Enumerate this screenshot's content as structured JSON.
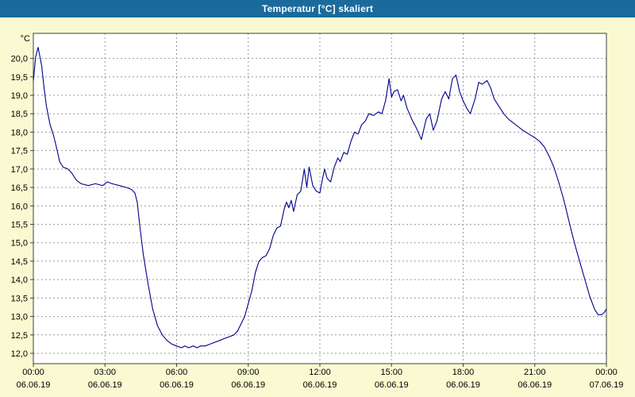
{
  "window": {
    "title": "Temperatur [°C] skaliert"
  },
  "colors": {
    "title_bar": "#1b6a9c",
    "background": "#fafad2",
    "plot_background": "#ffffff",
    "grid": "#9a9a9a",
    "border": "#404040",
    "line": "#00008b"
  },
  "chart_data": {
    "type": "line",
    "title": "Temperatur [°C] skaliert",
    "ylabel": "°C",
    "unit_label": "°C",
    "xlim": [
      0,
      24
    ],
    "ylim": [
      11.72,
      20.68
    ],
    "grid": true,
    "legend": "none",
    "line_color": "#00008b",
    "y_ticks": [
      {
        "value": 20.0,
        "label": "20,0"
      },
      {
        "value": 19.5,
        "label": "19,5"
      },
      {
        "value": 19.0,
        "label": "19,0"
      },
      {
        "value": 18.5,
        "label": "18,5"
      },
      {
        "value": 18.0,
        "label": "18,0"
      },
      {
        "value": 17.5,
        "label": "17,5"
      },
      {
        "value": 17.0,
        "label": "17,0"
      },
      {
        "value": 16.5,
        "label": "16,5"
      },
      {
        "value": 16.0,
        "label": "16,0"
      },
      {
        "value": 15.5,
        "label": "15,5"
      },
      {
        "value": 15.0,
        "label": "15,0"
      },
      {
        "value": 14.5,
        "label": "14,5"
      },
      {
        "value": 14.0,
        "label": "14,0"
      },
      {
        "value": 13.5,
        "label": "13,5"
      },
      {
        "value": 13.0,
        "label": "13,0"
      },
      {
        "value": 12.5,
        "label": "12,5"
      },
      {
        "value": 12.0,
        "label": "12,0"
      }
    ],
    "x_ticks": [
      {
        "hour": 0,
        "time": "00:00",
        "date": "06.06.19"
      },
      {
        "hour": 3,
        "time": "03:00",
        "date": "06.06.19"
      },
      {
        "hour": 6,
        "time": "06:00",
        "date": "06.06.19"
      },
      {
        "hour": 9,
        "time": "09:00",
        "date": "06.06.19"
      },
      {
        "hour": 12,
        "time": "12:00",
        "date": "06.06.19"
      },
      {
        "hour": 15,
        "time": "15:00",
        "date": "06.06.19"
      },
      {
        "hour": 18,
        "time": "18:00",
        "date": "06.06.19"
      },
      {
        "hour": 21,
        "time": "21:00",
        "date": "06.06.19"
      },
      {
        "hour": 24,
        "time": "00:00",
        "date": "07.06.19"
      }
    ],
    "series": [
      {
        "name": "Temperatur",
        "points": [
          [
            0,
            19.4
          ],
          [
            0.1,
            20.05
          ],
          [
            0.2,
            20.3
          ],
          [
            0.35,
            19.8
          ],
          [
            0.45,
            19.2
          ],
          [
            0.55,
            18.7
          ],
          [
            0.7,
            18.2
          ],
          [
            0.85,
            17.9
          ],
          [
            1.0,
            17.5
          ],
          [
            1.1,
            17.2
          ],
          [
            1.25,
            17.05
          ],
          [
            1.45,
            17.0
          ],
          [
            1.6,
            16.9
          ],
          [
            1.8,
            16.7
          ],
          [
            2.0,
            16.6
          ],
          [
            2.3,
            16.55
          ],
          [
            2.6,
            16.6
          ],
          [
            2.9,
            16.55
          ],
          [
            3.1,
            16.65
          ],
          [
            3.3,
            16.6
          ],
          [
            3.6,
            16.55
          ],
          [
            3.9,
            16.5
          ],
          [
            4.1,
            16.45
          ],
          [
            4.25,
            16.35
          ],
          [
            4.35,
            16.1
          ],
          [
            4.45,
            15.5
          ],
          [
            4.6,
            14.7
          ],
          [
            4.8,
            13.9
          ],
          [
            5.0,
            13.2
          ],
          [
            5.2,
            12.75
          ],
          [
            5.4,
            12.5
          ],
          [
            5.6,
            12.35
          ],
          [
            5.8,
            12.25
          ],
          [
            6.0,
            12.2
          ],
          [
            6.2,
            12.15
          ],
          [
            6.35,
            12.2
          ],
          [
            6.5,
            12.15
          ],
          [
            6.7,
            12.2
          ],
          [
            6.85,
            12.15
          ],
          [
            7.0,
            12.2
          ],
          [
            7.2,
            12.2
          ],
          [
            7.4,
            12.25
          ],
          [
            7.6,
            12.3
          ],
          [
            7.8,
            12.35
          ],
          [
            8.0,
            12.4
          ],
          [
            8.2,
            12.45
          ],
          [
            8.4,
            12.5
          ],
          [
            8.55,
            12.6
          ],
          [
            8.7,
            12.8
          ],
          [
            8.85,
            13.0
          ],
          [
            9.0,
            13.35
          ],
          [
            9.15,
            13.7
          ],
          [
            9.3,
            14.2
          ],
          [
            9.45,
            14.5
          ],
          [
            9.6,
            14.6
          ],
          [
            9.75,
            14.65
          ],
          [
            9.9,
            14.85
          ],
          [
            10.05,
            15.2
          ],
          [
            10.2,
            15.4
          ],
          [
            10.35,
            15.45
          ],
          [
            10.5,
            15.9
          ],
          [
            10.6,
            16.1
          ],
          [
            10.7,
            15.95
          ],
          [
            10.8,
            16.15
          ],
          [
            10.9,
            15.85
          ],
          [
            11.05,
            16.3
          ],
          [
            11.2,
            16.4
          ],
          [
            11.35,
            17.0
          ],
          [
            11.45,
            16.5
          ],
          [
            11.55,
            17.05
          ],
          [
            11.7,
            16.55
          ],
          [
            11.85,
            16.4
          ],
          [
            12.0,
            16.35
          ],
          [
            12.1,
            16.7
          ],
          [
            12.2,
            17.0
          ],
          [
            12.3,
            16.75
          ],
          [
            12.45,
            16.65
          ],
          [
            12.6,
            17.05
          ],
          [
            12.75,
            17.3
          ],
          [
            12.85,
            17.2
          ],
          [
            13.0,
            17.45
          ],
          [
            13.15,
            17.4
          ],
          [
            13.3,
            17.75
          ],
          [
            13.45,
            18.0
          ],
          [
            13.6,
            17.95
          ],
          [
            13.75,
            18.2
          ],
          [
            13.9,
            18.3
          ],
          [
            14.05,
            18.5
          ],
          [
            14.25,
            18.45
          ],
          [
            14.45,
            18.55
          ],
          [
            14.6,
            18.5
          ],
          [
            14.75,
            18.85
          ],
          [
            14.9,
            19.45
          ],
          [
            15.0,
            18.95
          ],
          [
            15.1,
            19.1
          ],
          [
            15.25,
            19.15
          ],
          [
            15.4,
            18.85
          ],
          [
            15.5,
            19.0
          ],
          [
            15.65,
            18.65
          ],
          [
            15.85,
            18.35
          ],
          [
            16.05,
            18.1
          ],
          [
            16.25,
            17.8
          ],
          [
            16.45,
            18.35
          ],
          [
            16.6,
            18.5
          ],
          [
            16.75,
            18.05
          ],
          [
            16.9,
            18.3
          ],
          [
            17.1,
            18.9
          ],
          [
            17.25,
            19.1
          ],
          [
            17.4,
            18.9
          ],
          [
            17.55,
            19.45
          ],
          [
            17.7,
            19.55
          ],
          [
            17.85,
            19.1
          ],
          [
            18.0,
            18.85
          ],
          [
            18.15,
            18.65
          ],
          [
            18.3,
            18.5
          ],
          [
            18.5,
            18.9
          ],
          [
            18.65,
            19.35
          ],
          [
            18.8,
            19.3
          ],
          [
            19.0,
            19.4
          ],
          [
            19.15,
            19.2
          ],
          [
            19.3,
            18.9
          ],
          [
            19.5,
            18.7
          ],
          [
            19.7,
            18.5
          ],
          [
            19.9,
            18.35
          ],
          [
            20.1,
            18.25
          ],
          [
            20.3,
            18.15
          ],
          [
            20.5,
            18.05
          ],
          [
            20.75,
            17.95
          ],
          [
            21.0,
            17.85
          ],
          [
            21.2,
            17.75
          ],
          [
            21.4,
            17.6
          ],
          [
            21.6,
            17.35
          ],
          [
            21.8,
            17.05
          ],
          [
            22.0,
            16.65
          ],
          [
            22.2,
            16.2
          ],
          [
            22.35,
            15.8
          ],
          [
            22.5,
            15.4
          ],
          [
            22.7,
            14.9
          ],
          [
            22.9,
            14.45
          ],
          [
            23.1,
            14.0
          ],
          [
            23.3,
            13.55
          ],
          [
            23.5,
            13.2
          ],
          [
            23.65,
            13.05
          ],
          [
            23.8,
            13.05
          ],
          [
            23.9,
            13.1
          ],
          [
            24.0,
            13.2
          ]
        ]
      }
    ]
  }
}
